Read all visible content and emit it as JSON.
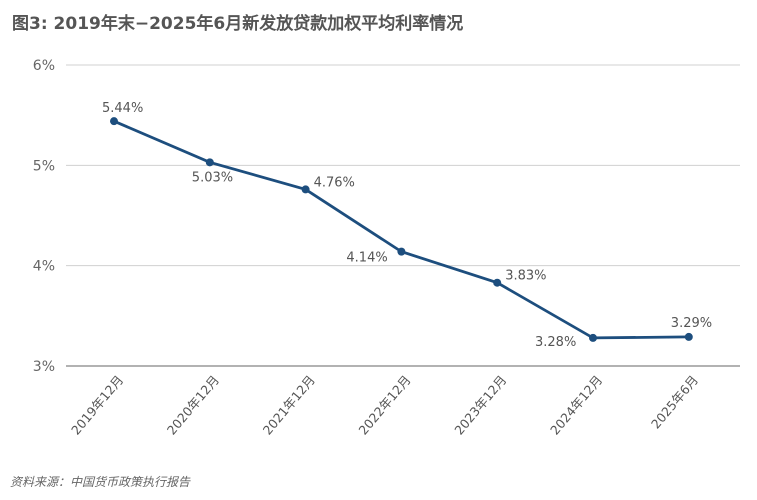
{
  "chart_data": {
    "type": "line",
    "title": "图3: 2019年末−2025年6月新发放贷款加权平均利率情况",
    "categories": [
      "2019年12月",
      "2020年12月",
      "2021年12月",
      "2022年12月",
      "2023年12月",
      "2024年12月",
      "2025年6月"
    ],
    "series": [
      {
        "values": [
          5.44,
          5.03,
          4.76,
          4.14,
          3.83,
          3.28,
          3.29
        ],
        "color": "#1d4e7e"
      }
    ],
    "data_labels": [
      "5.44%",
      "5.03%",
      "4.76%",
      "4.14%",
      "3.83%",
      "3.28%",
      "3.29%"
    ],
    "yticks": [
      "3%",
      "4%",
      "5%",
      "6%"
    ],
    "ylim": [
      3,
      6
    ],
    "grid": true,
    "xlabel": "",
    "ylabel": "",
    "source": "资料来源：中国货币政策执行报告"
  }
}
